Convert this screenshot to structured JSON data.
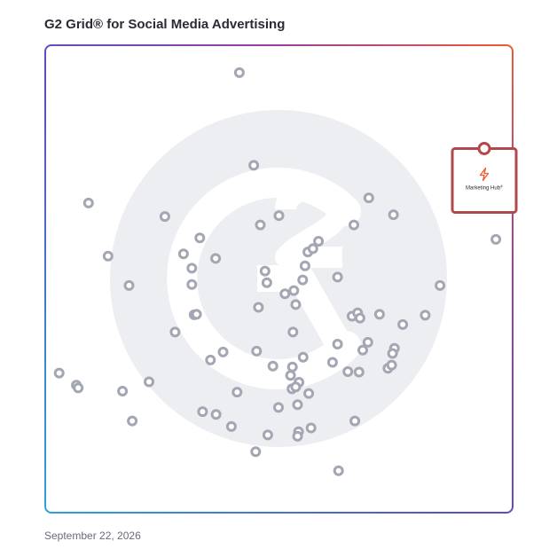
{
  "header": {
    "title": "G2 Grid® for Social Media Advertising"
  },
  "footer": {
    "date": "September 22, 2026"
  },
  "colors": {
    "dot_stroke": "#a3a6b3",
    "highlight": "#b3484c",
    "watermark": "#edeef1",
    "frame_left": "#3a63c8",
    "frame_right": "#e8593a",
    "accent_product": "#f05a28"
  },
  "chart_data": {
    "type": "scatter",
    "xlim": [
      0,
      100
    ],
    "ylim": [
      0,
      100
    ],
    "grid": "quadrants",
    "title": "G2 Grid® for Social Media Advertising",
    "xlabel": "",
    "ylabel": "",
    "highlight": {
      "label": "Marketing Hub",
      "mark": "®",
      "x": 94.1,
      "y": 78.0,
      "icon": "hubspot-sprocket-icon"
    },
    "points": [
      {
        "x": 41.5,
        "y": 94.3
      },
      {
        "x": 44.6,
        "y": 74.4
      },
      {
        "x": 9.1,
        "y": 66.3
      },
      {
        "x": 25.5,
        "y": 63.4
      },
      {
        "x": 46.0,
        "y": 61.6
      },
      {
        "x": 50.0,
        "y": 63.6
      },
      {
        "x": 69.3,
        "y": 67.4
      },
      {
        "x": 74.6,
        "y": 63.8
      },
      {
        "x": 66.1,
        "y": 61.6
      },
      {
        "x": 96.6,
        "y": 58.5
      },
      {
        "x": 33.0,
        "y": 58.8
      },
      {
        "x": 13.3,
        "y": 54.9
      },
      {
        "x": 29.5,
        "y": 55.4
      },
      {
        "x": 36.4,
        "y": 54.4
      },
      {
        "x": 31.3,
        "y": 52.3
      },
      {
        "x": 56.2,
        "y": 55.8
      },
      {
        "x": 58.5,
        "y": 58.1
      },
      {
        "x": 57.3,
        "y": 56.5
      },
      {
        "x": 55.6,
        "y": 52.8
      },
      {
        "x": 47.0,
        "y": 51.7
      },
      {
        "x": 47.4,
        "y": 49.2
      },
      {
        "x": 55.1,
        "y": 49.8
      },
      {
        "x": 62.6,
        "y": 50.4
      },
      {
        "x": 17.8,
        "y": 48.6
      },
      {
        "x": 31.3,
        "y": 48.8
      },
      {
        "x": 53.2,
        "y": 47.5
      },
      {
        "x": 51.3,
        "y": 46.8
      },
      {
        "x": 53.6,
        "y": 44.5
      },
      {
        "x": 45.6,
        "y": 43.9
      },
      {
        "x": 84.6,
        "y": 48.6
      },
      {
        "x": 31.8,
        "y": 42.3
      },
      {
        "x": 32.3,
        "y": 42.4
      },
      {
        "x": 65.7,
        "y": 42.0
      },
      {
        "x": 66.9,
        "y": 42.7
      },
      {
        "x": 67.4,
        "y": 41.6
      },
      {
        "x": 71.6,
        "y": 42.4
      },
      {
        "x": 81.4,
        "y": 42.2
      },
      {
        "x": 76.6,
        "y": 40.2
      },
      {
        "x": 27.7,
        "y": 38.6
      },
      {
        "x": 53.0,
        "y": 38.6
      },
      {
        "x": 62.6,
        "y": 36.0
      },
      {
        "x": 69.1,
        "y": 36.4
      },
      {
        "x": 45.2,
        "y": 34.5
      },
      {
        "x": 38.0,
        "y": 34.3
      },
      {
        "x": 68.0,
        "y": 34.7
      },
      {
        "x": 74.8,
        "y": 35.1
      },
      {
        "x": 74.4,
        "y": 34.0
      },
      {
        "x": 35.3,
        "y": 32.6
      },
      {
        "x": 55.2,
        "y": 33.2
      },
      {
        "x": 61.5,
        "y": 32.1
      },
      {
        "x": 48.7,
        "y": 31.3
      },
      {
        "x": 52.9,
        "y": 31.1
      },
      {
        "x": 64.8,
        "y": 30.1
      },
      {
        "x": 67.2,
        "y": 30.0
      },
      {
        "x": 73.4,
        "y": 30.8
      },
      {
        "x": 74.2,
        "y": 31.5
      },
      {
        "x": 2.8,
        "y": 29.8
      },
      {
        "x": 6.5,
        "y": 27.2
      },
      {
        "x": 6.9,
        "y": 26.6
      },
      {
        "x": 22.1,
        "y": 27.9
      },
      {
        "x": 52.5,
        "y": 29.3
      },
      {
        "x": 54.3,
        "y": 27.8
      },
      {
        "x": 52.8,
        "y": 26.4
      },
      {
        "x": 53.6,
        "y": 26.8
      },
      {
        "x": 16.4,
        "y": 25.9
      },
      {
        "x": 41.0,
        "y": 25.7
      },
      {
        "x": 56.4,
        "y": 25.4
      },
      {
        "x": 54.0,
        "y": 23.0
      },
      {
        "x": 49.9,
        "y": 22.4
      },
      {
        "x": 33.6,
        "y": 21.5
      },
      {
        "x": 36.5,
        "y": 20.9
      },
      {
        "x": 18.5,
        "y": 19.5
      },
      {
        "x": 39.8,
        "y": 18.3
      },
      {
        "x": 56.9,
        "y": 18.0
      },
      {
        "x": 54.2,
        "y": 17.2
      },
      {
        "x": 54.0,
        "y": 16.2
      },
      {
        "x": 47.6,
        "y": 16.5
      },
      {
        "x": 66.3,
        "y": 19.5
      },
      {
        "x": 45.0,
        "y": 12.9
      },
      {
        "x": 62.8,
        "y": 8.8
      }
    ]
  }
}
